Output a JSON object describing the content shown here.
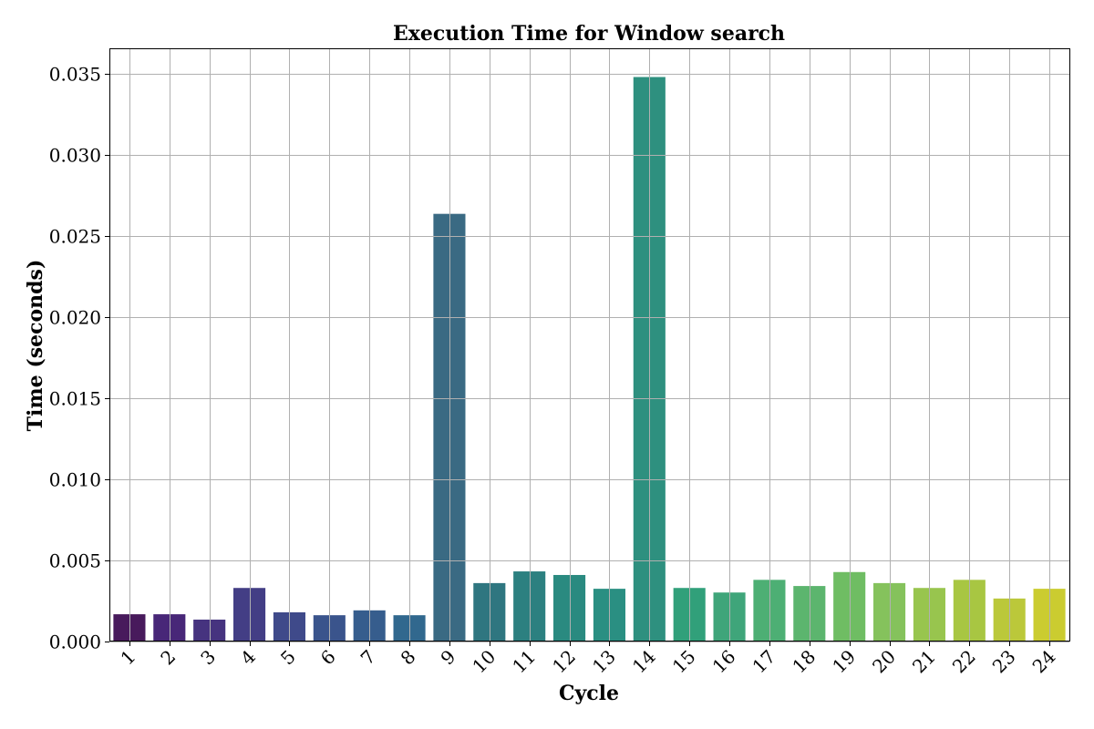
{
  "chart_data": {
    "type": "bar",
    "title": "Execution Time for Window search",
    "xlabel": "Cycle",
    "ylabel": "Time (seconds)",
    "categories": [
      "1",
      "2",
      "3",
      "4",
      "5",
      "6",
      "7",
      "8",
      "9",
      "10",
      "11",
      "12",
      "13",
      "14",
      "15",
      "16",
      "17",
      "18",
      "19",
      "20",
      "21",
      "22",
      "23",
      "24"
    ],
    "values": [
      0.00168,
      0.00168,
      0.00135,
      0.0033,
      0.0018,
      0.00162,
      0.00192,
      0.00162,
      0.02635,
      0.0036,
      0.00432,
      0.0041,
      0.00325,
      0.03478,
      0.0033,
      0.00302,
      0.0038,
      0.00342,
      0.00428,
      0.0036,
      0.0033,
      0.0038,
      0.00265,
      0.00325
    ],
    "colors": [
      "#481a5c",
      "#482778",
      "#46337f",
      "#433e85",
      "#3f4a8a",
      "#3a548c",
      "#365d8d",
      "#31688e",
      "#3a6a83",
      "#2f7680",
      "#2c8080",
      "#2a8a80",
      "#2a8f82",
      "#2e907f",
      "#31a07a",
      "#3fa57a",
      "#4daf74",
      "#5cb56e",
      "#6fbd63",
      "#85c25c",
      "#98c54e",
      "#a8c642",
      "#bbc83a",
      "#cbcc30"
    ],
    "yticks": [
      "0.000",
      "0.005",
      "0.010",
      "0.015",
      "0.020",
      "0.025",
      "0.030",
      "0.035"
    ],
    "ytick_values": [
      0,
      0.005,
      0.01,
      0.015,
      0.02,
      0.025,
      0.03,
      0.035
    ],
    "ylim": [
      0,
      0.03655
    ],
    "grid": true,
    "legend": "none"
  }
}
